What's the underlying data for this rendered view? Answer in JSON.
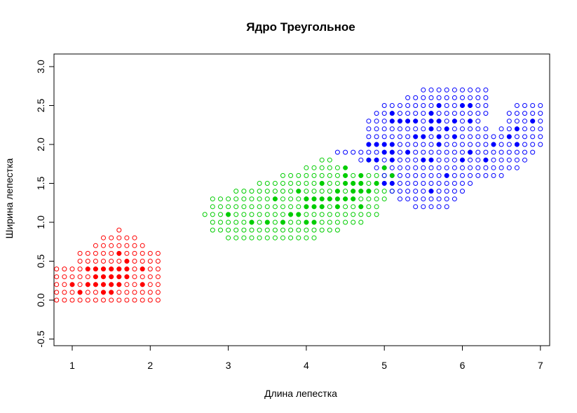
{
  "chart_data": {
    "type": "scatter",
    "title": "Ядро Треугольное",
    "xlabel": "Длина лепестка",
    "ylabel": "Ширина лепестка",
    "xlim": [
      0.8,
      7.1
    ],
    "ylim": [
      -0.6,
      3.2
    ],
    "xticks": [
      1,
      2,
      3,
      4,
      5,
      6,
      7
    ],
    "xtick_labels": [
      "1",
      "2",
      "3",
      "4",
      "5",
      "6",
      "7"
    ],
    "yticks": [
      -0.5,
      0.0,
      0.5,
      1.0,
      1.5,
      2.0,
      2.5,
      3.0
    ],
    "ytick_labels": [
      "-0.5",
      "0.0",
      "0.5",
      "1.0",
      "1.5",
      "2.0",
      "2.5",
      "3.0"
    ],
    "grid": false,
    "grid_step": 0.1,
    "colors": {
      "setosa": "#ff0000",
      "versicolor": "#00cd00",
      "virginica": "#0000ff"
    },
    "series": [
      {
        "class": "setosa",
        "marker": "open-circle",
        "color": "#ff0000",
        "rows": [
          {
            "y": 0.0,
            "x_ranges": [
              [
                0.8,
                2.1
              ]
            ]
          },
          {
            "y": 0.1,
            "x_ranges": [
              [
                0.8,
                2.1
              ]
            ]
          },
          {
            "y": 0.2,
            "x_ranges": [
              [
                0.8,
                2.1
              ]
            ]
          },
          {
            "y": 0.3,
            "x_ranges": [
              [
                0.8,
                2.1
              ]
            ]
          },
          {
            "y": 0.4,
            "x_ranges": [
              [
                0.8,
                2.1
              ]
            ]
          },
          {
            "y": 0.5,
            "x_ranges": [
              [
                1.1,
                2.1
              ]
            ]
          },
          {
            "y": 0.6,
            "x_ranges": [
              [
                1.1,
                2.1
              ]
            ]
          },
          {
            "y": 0.7,
            "x_ranges": [
              [
                1.3,
                1.9
              ]
            ]
          },
          {
            "y": 0.8,
            "x_ranges": [
              [
                1.4,
                1.8
              ]
            ]
          },
          {
            "y": 0.9,
            "x_ranges": [
              [
                1.6,
                1.6
              ]
            ]
          }
        ]
      },
      {
        "class": "versicolor",
        "marker": "open-circle",
        "color": "#00cd00",
        "rows": [
          {
            "y": 0.8,
            "x_ranges": [
              [
                3.0,
                4.1
              ]
            ]
          },
          {
            "y": 0.9,
            "x_ranges": [
              [
                2.8,
                4.4
              ]
            ]
          },
          {
            "y": 1.0,
            "x_ranges": [
              [
                2.8,
                4.7
              ]
            ]
          },
          {
            "y": 1.1,
            "x_ranges": [
              [
                2.7,
                4.9
              ]
            ]
          },
          {
            "y": 1.2,
            "x_ranges": [
              [
                2.8,
                4.9
              ]
            ]
          },
          {
            "y": 1.3,
            "x_ranges": [
              [
                2.8,
                5.0
              ]
            ]
          },
          {
            "y": 1.4,
            "x_ranges": [
              [
                3.1,
                5.1
              ]
            ]
          },
          {
            "y": 1.5,
            "x_ranges": [
              [
                3.4,
                4.9
              ]
            ]
          },
          {
            "y": 1.6,
            "x_ranges": [
              [
                3.7,
                5.0
              ]
            ]
          },
          {
            "y": 1.7,
            "x_ranges": [
              [
                4.0,
                4.4
              ]
            ]
          },
          {
            "y": 1.8,
            "x_ranges": [
              [
                4.2,
                4.3
              ]
            ]
          }
        ]
      },
      {
        "class": "virginica",
        "marker": "open-circle",
        "color": "#0000ff",
        "rows": [
          {
            "y": 1.2,
            "x_ranges": [
              [
                5.4,
                5.8
              ]
            ]
          },
          {
            "y": 1.3,
            "x_ranges": [
              [
                5.2,
                5.9
              ]
            ]
          },
          {
            "y": 1.4,
            "x_ranges": [
              [
                5.1,
                6.0
              ]
            ]
          },
          {
            "y": 1.5,
            "x_ranges": [
              [
                5.0,
                6.1
              ]
            ]
          },
          {
            "y": 1.6,
            "x_ranges": [
              [
                5.0,
                6.5
              ]
            ]
          },
          {
            "y": 1.7,
            "x_ranges": [
              [
                4.9,
                6.7
              ]
            ]
          },
          {
            "y": 1.8,
            "x_ranges": [
              [
                4.7,
                6.8
              ]
            ]
          },
          {
            "y": 1.9,
            "x_ranges": [
              [
                4.4,
                6.9
              ]
            ]
          },
          {
            "y": 2.0,
            "x_ranges": [
              [
                4.8,
                7.0
              ]
            ]
          },
          {
            "y": 2.1,
            "x_ranges": [
              [
                4.8,
                7.0
              ]
            ]
          },
          {
            "y": 2.2,
            "x_ranges": [
              [
                4.8,
                6.3
              ],
              [
                6.5,
                7.0
              ]
            ]
          },
          {
            "y": 2.3,
            "x_ranges": [
              [
                4.8,
                6.2
              ],
              [
                6.6,
                7.0
              ]
            ]
          },
          {
            "y": 2.4,
            "x_ranges": [
              [
                4.9,
                6.3
              ],
              [
                6.6,
                7.0
              ]
            ]
          },
          {
            "y": 2.5,
            "x_ranges": [
              [
                5.0,
                6.3
              ],
              [
                6.7,
                7.0
              ]
            ]
          },
          {
            "y": 2.6,
            "x_ranges": [
              [
                5.3,
                6.3
              ]
            ]
          },
          {
            "y": 2.7,
            "x_ranges": [
              [
                5.5,
                6.3
              ]
            ]
          }
        ]
      }
    ],
    "observations": {
      "setosa": [
        [
          1.4,
          0.2
        ],
        [
          1.3,
          0.2
        ],
        [
          1.5,
          0.2
        ],
        [
          1.7,
          0.4
        ],
        [
          1.4,
          0.3
        ],
        [
          1.5,
          0.1
        ],
        [
          1.6,
          0.2
        ],
        [
          1.1,
          0.1
        ],
        [
          1.2,
          0.2
        ],
        [
          1.3,
          0.4
        ],
        [
          1.7,
          0.3
        ],
        [
          1.5,
          0.3
        ],
        [
          1.9,
          0.2
        ],
        [
          1.6,
          0.4
        ],
        [
          1.0,
          0.2
        ],
        [
          1.7,
          0.5
        ],
        [
          1.9,
          0.4
        ],
        [
          1.6,
          0.6
        ],
        [
          1.4,
          0.1
        ],
        [
          1.3,
          0.3
        ],
        [
          1.2,
          0.4
        ],
        [
          1.5,
          0.4
        ],
        [
          1.6,
          0.3
        ],
        [
          1.4,
          0.4
        ]
      ],
      "versicolor": [
        [
          4.7,
          1.4
        ],
        [
          4.5,
          1.5
        ],
        [
          4.9,
          1.5
        ],
        [
          4.0,
          1.3
        ],
        [
          4.6,
          1.5
        ],
        [
          3.3,
          1.0
        ],
        [
          4.6,
          1.3
        ],
        [
          3.9,
          1.4
        ],
        [
          3.5,
          1.0
        ],
        [
          4.2,
          1.5
        ],
        [
          4.0,
          1.0
        ],
        [
          4.7,
          1.6
        ],
        [
          3.6,
          1.3
        ],
        [
          4.4,
          1.4
        ],
        [
          4.1,
          1.0
        ],
        [
          4.5,
          1.3
        ],
        [
          3.9,
          1.1
        ],
        [
          4.8,
          1.8
        ],
        [
          4.0,
          1.3
        ],
        [
          4.9,
          1.5
        ],
        [
          4.7,
          1.2
        ],
        [
          4.3,
          1.3
        ],
        [
          4.4,
          1.3
        ],
        [
          4.8,
          1.4
        ],
        [
          5.0,
          1.7
        ],
        [
          3.8,
          1.1
        ],
        [
          3.7,
          1.0
        ],
        [
          5.1,
          1.6
        ],
        [
          4.5,
          1.6
        ],
        [
          4.1,
          1.3
        ],
        [
          4.2,
          1.3
        ],
        [
          4.0,
          1.2
        ],
        [
          4.4,
          1.2
        ],
        [
          3.0,
          1.1
        ],
        [
          4.1,
          1.2
        ],
        [
          4.6,
          1.4
        ],
        [
          4.3,
          1.3
        ],
        [
          4.5,
          1.7
        ],
        [
          4.2,
          1.2
        ],
        [
          4.7,
          1.5
        ]
      ],
      "virginica": [
        [
          6.0,
          2.5
        ],
        [
          5.1,
          1.9
        ],
        [
          5.9,
          2.1
        ],
        [
          5.6,
          1.8
        ],
        [
          5.8,
          2.2
        ],
        [
          6.6,
          2.1
        ],
        [
          6.3,
          1.8
        ],
        [
          6.1,
          2.5
        ],
        [
          5.1,
          2.0
        ],
        [
          5.3,
          1.9
        ],
        [
          5.5,
          2.1
        ],
        [
          5.0,
          2.0
        ],
        [
          5.1,
          2.4
        ],
        [
          5.3,
          2.3
        ],
        [
          6.7,
          2.2
        ],
        [
          6.9,
          2.3
        ],
        [
          5.0,
          1.5
        ],
        [
          5.7,
          2.3
        ],
        [
          4.9,
          2.0
        ],
        [
          6.7,
          2.0
        ],
        [
          4.9,
          1.8
        ],
        [
          5.7,
          2.1
        ],
        [
          6.0,
          1.8
        ],
        [
          4.8,
          1.8
        ],
        [
          5.8,
          1.6
        ],
        [
          6.1,
          1.9
        ],
        [
          6.4,
          2.0
        ],
        [
          5.6,
          2.2
        ],
        [
          5.1,
          1.5
        ],
        [
          5.6,
          1.4
        ],
        [
          6.1,
          2.3
        ],
        [
          5.6,
          2.4
        ],
        [
          5.5,
          1.8
        ],
        [
          4.8,
          2.0
        ],
        [
          5.4,
          2.1
        ],
        [
          5.6,
          2.3
        ],
        [
          5.1,
          2.3
        ],
        [
          5.9,
          2.3
        ],
        [
          5.7,
          2.5
        ],
        [
          5.2,
          2.3
        ],
        [
          5.4,
          2.3
        ],
        [
          5.7,
          2.0
        ],
        [
          5.1,
          1.8
        ],
        [
          5.0,
          1.9
        ]
      ]
    }
  }
}
